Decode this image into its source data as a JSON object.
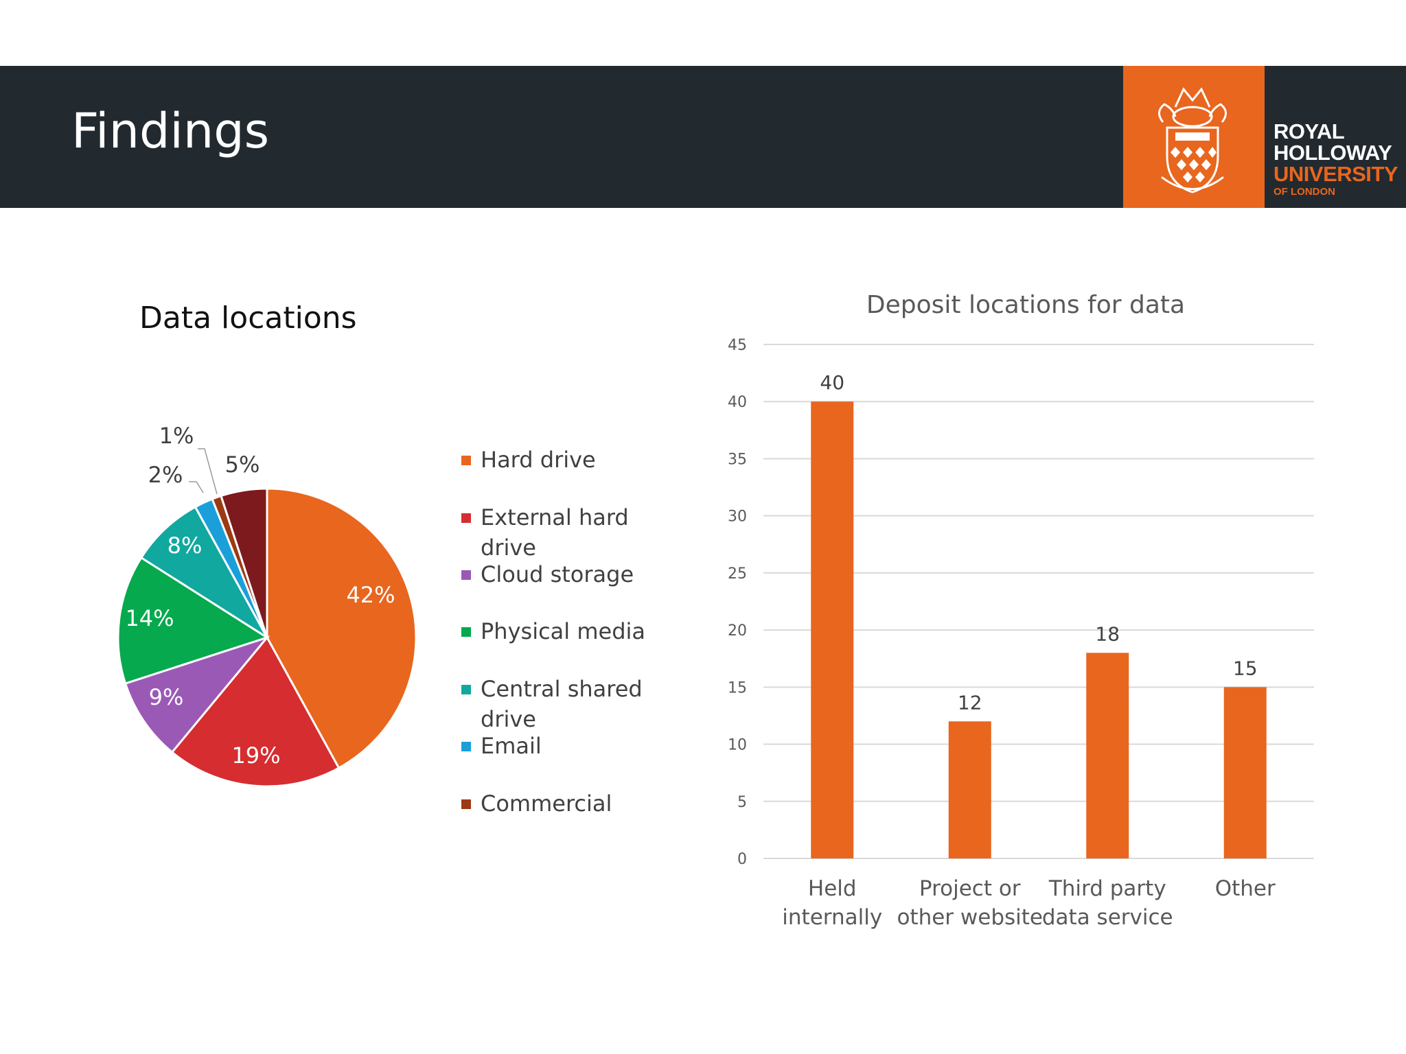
{
  "header": {
    "title": "Findings",
    "logo": {
      "line1": "ROYAL",
      "line2": "HOLLOWAY",
      "line3": "UNIVERSITY",
      "line4": "OF LONDON"
    }
  },
  "colors": {
    "header_bg": "#222a30",
    "brand_orange": "#e8661e"
  },
  "chart_data": [
    {
      "type": "pie",
      "title": "Data locations",
      "categories": [
        "Hard drive",
        "External hard drive",
        "Cloud storage",
        "Physical media",
        "Central shared drive",
        "Email",
        "Commercial",
        ""
      ],
      "values": [
        42,
        19,
        9,
        14,
        8,
        2,
        1,
        5
      ],
      "labels": [
        "42%",
        "19%",
        "9%",
        "14%",
        "8%",
        "2%",
        "1%",
        "5%"
      ],
      "colors": [
        "#e8661e",
        "#d62d30",
        "#9b59b6",
        "#06a94d",
        "#10a89f",
        "#1a9fd9",
        "#9b3a14",
        "#7d1a1d"
      ],
      "legend": {
        "position": "right",
        "items": [
          "Hard drive",
          "External hard drive",
          "Cloud storage",
          "Physical media",
          "Central shared drive",
          "Email",
          "Commercial"
        ]
      }
    },
    {
      "type": "bar",
      "title": "Deposit locations for data",
      "categories": [
        [
          "Held",
          "internally"
        ],
        [
          "Project or",
          "other website"
        ],
        [
          "Third party",
          "data service"
        ],
        [
          "Other"
        ]
      ],
      "values": [
        40,
        12,
        18,
        15
      ],
      "ylim": [
        0,
        45
      ],
      "yticks": [
        0,
        5,
        10,
        15,
        20,
        25,
        30,
        35,
        40,
        45
      ],
      "grid": true,
      "xlabel": "",
      "ylabel": "",
      "color": "#e8661e"
    }
  ]
}
